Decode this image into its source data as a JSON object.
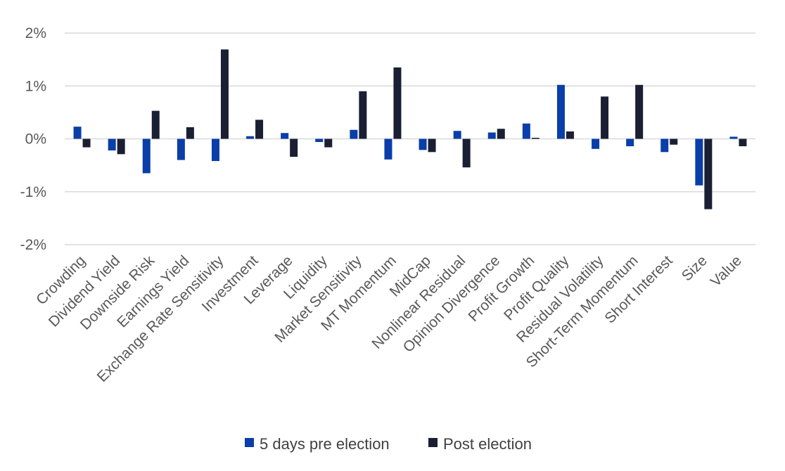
{
  "chart_data": {
    "type": "bar",
    "title": "",
    "xlabel": "",
    "ylabel": "",
    "ylim": [
      -2,
      2
    ],
    "yticks": [
      2,
      1,
      0,
      -1,
      -2
    ],
    "ytick_labels": [
      "2%",
      "1%",
      "0%",
      "-1%",
      "-2%"
    ],
    "grid": true,
    "legend_position": "bottom",
    "categories": [
      "Crowding",
      "Dividend Yield",
      "Downside Risk",
      "Earnings Yield",
      "Exchange Rate Sensitivity",
      "Investment",
      "Leverage",
      "Liquidity",
      "Market Sensitivity",
      "MT Momentum",
      "MidCap",
      "Nonlinear Residual",
      "Opinion Divergence",
      "Profit Growth",
      "Profit Quality",
      "Residual Volatility",
      "Short-Term Momentum",
      "Short Interest",
      "Size",
      "Value"
    ],
    "series": [
      {
        "name": "5 days pre election",
        "color": "#0a3ea8",
        "values": [
          0.23,
          -0.22,
          -0.65,
          -0.4,
          -0.42,
          0.05,
          0.11,
          -0.06,
          0.17,
          -0.39,
          -0.21,
          0.15,
          0.12,
          0.29,
          1.02,
          -0.19,
          -0.14,
          -0.25,
          -0.88,
          0.04
        ]
      },
      {
        "name": "Post election",
        "color": "#1b1f33",
        "values": [
          -0.16,
          -0.29,
          0.53,
          0.22,
          1.69,
          0.36,
          -0.34,
          -0.16,
          0.9,
          1.35,
          -0.25,
          -0.54,
          0.19,
          0.02,
          0.14,
          0.8,
          1.02,
          -0.11,
          -1.33,
          -0.14
        ]
      }
    ]
  }
}
